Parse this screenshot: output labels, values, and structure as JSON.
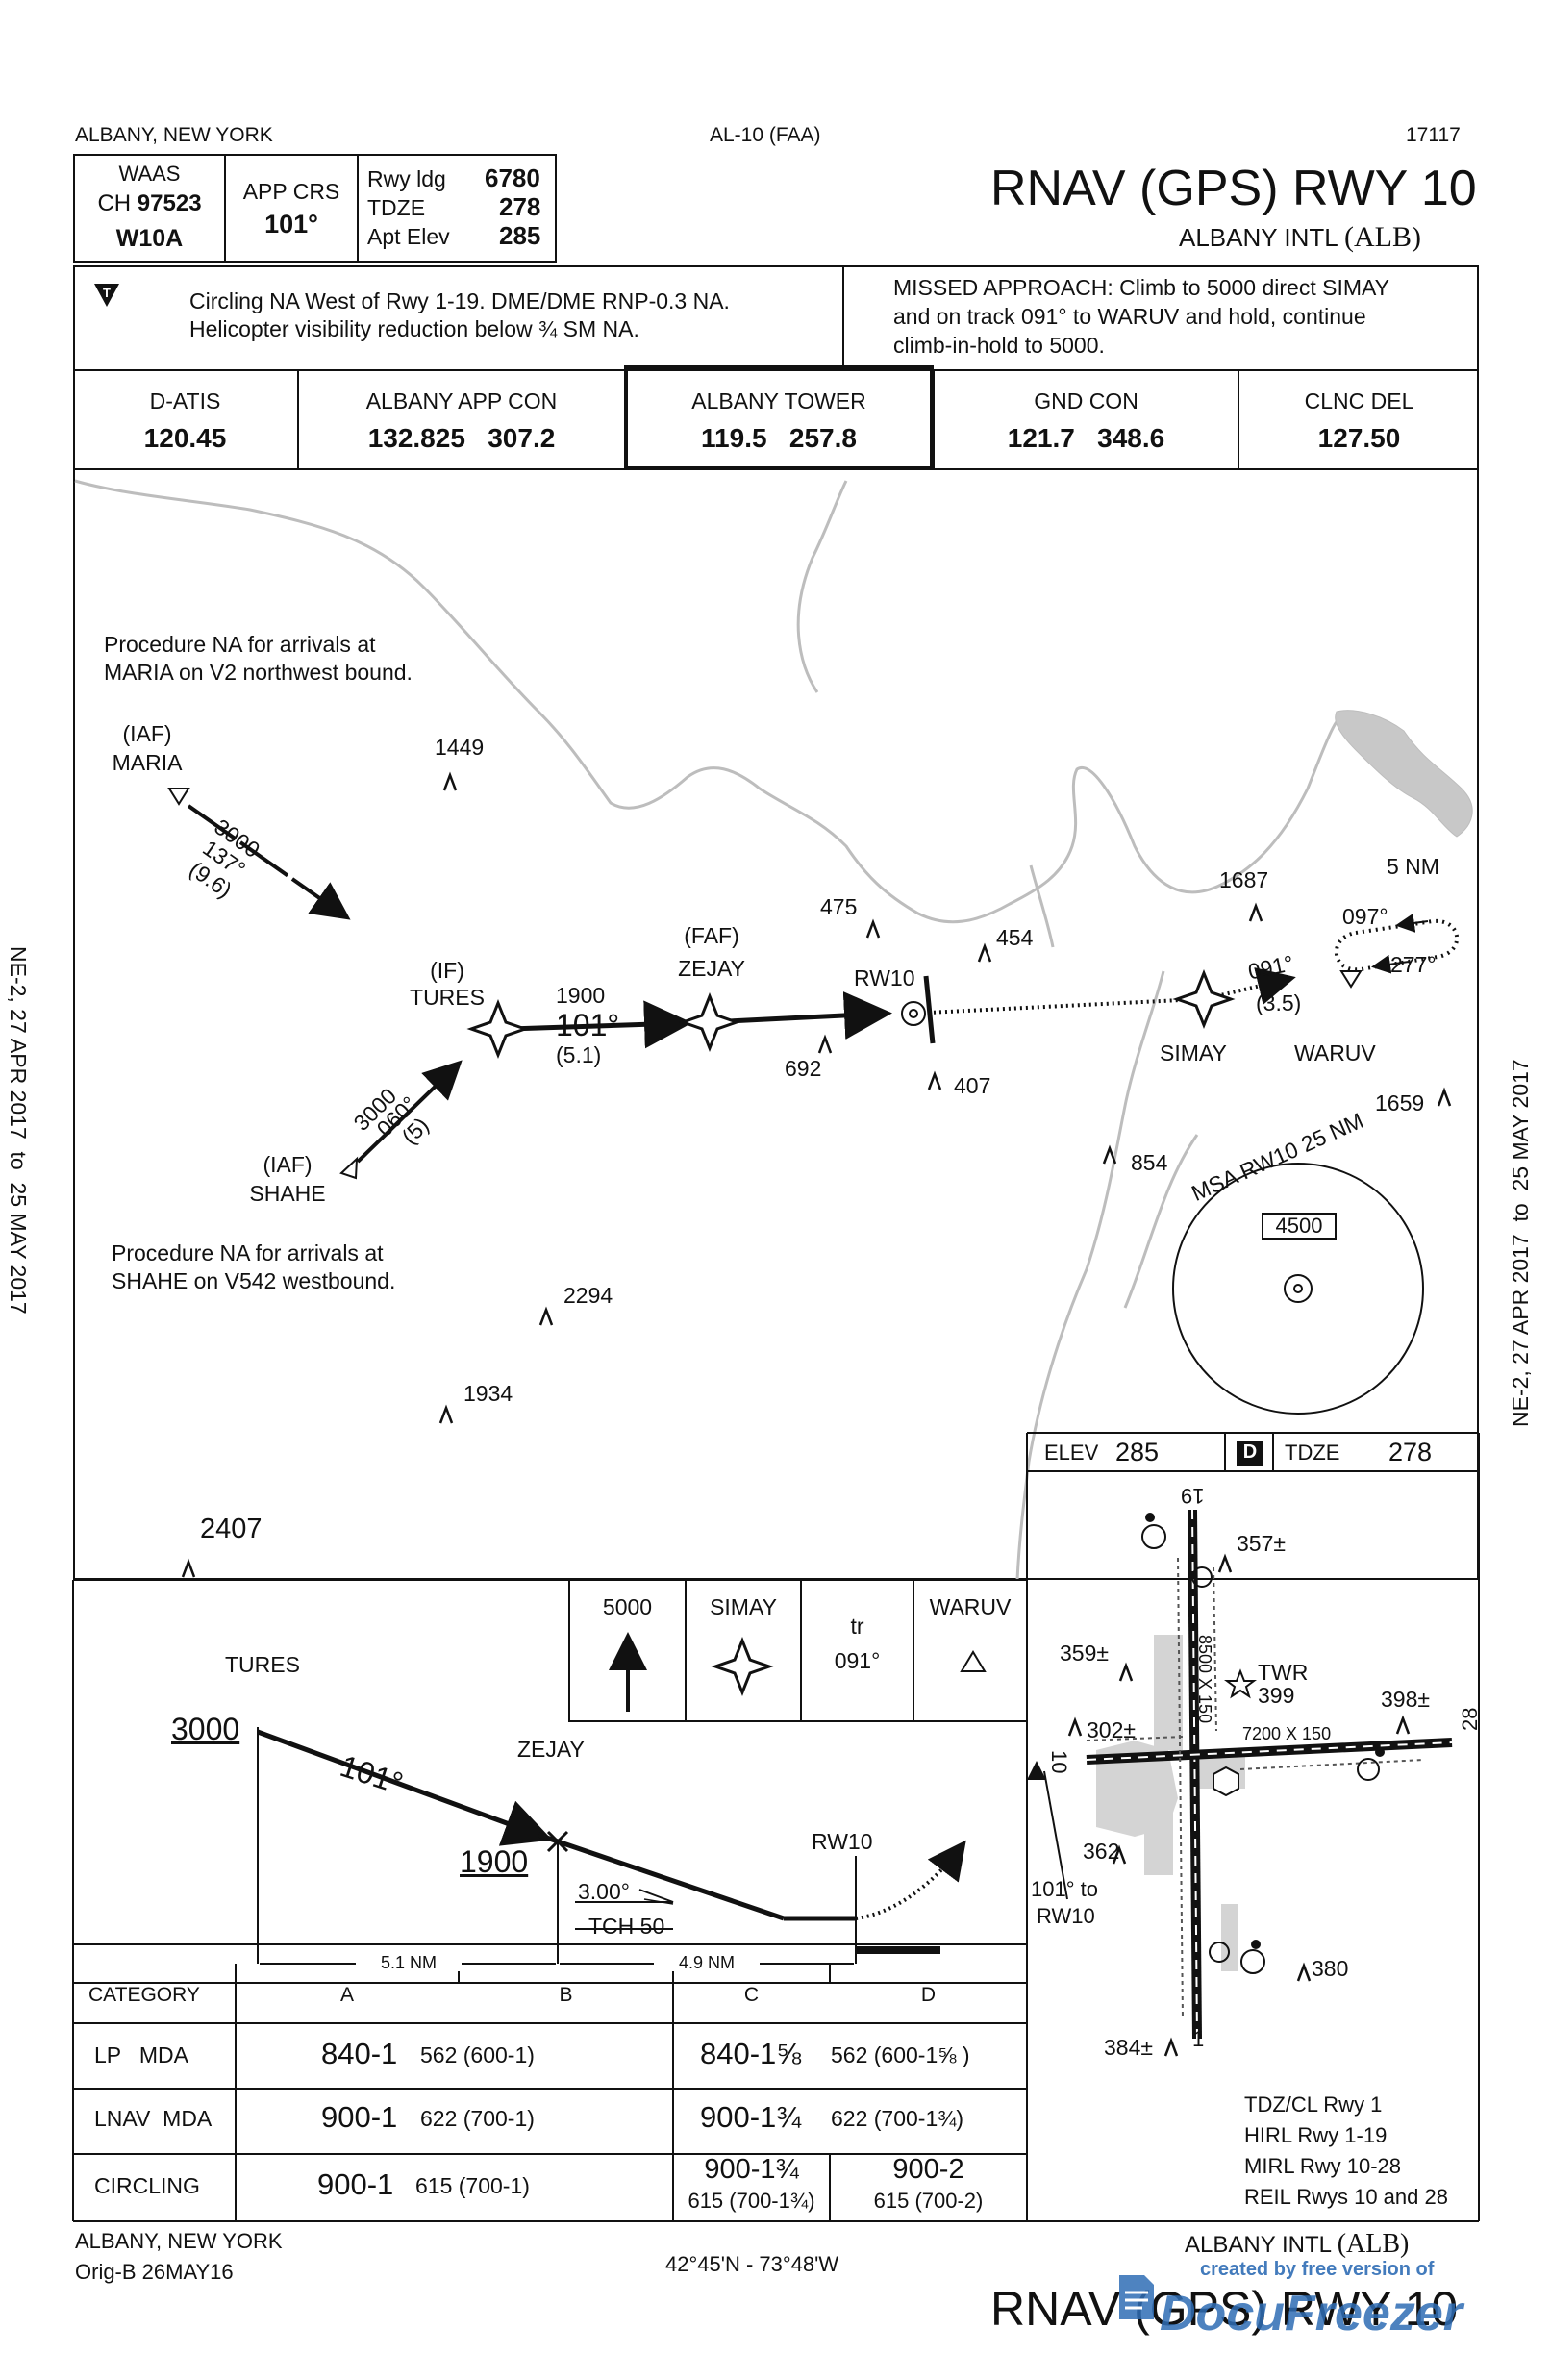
{
  "header": {
    "location": "ALBANY, NEW YORK",
    "chart_id": "AL-10 (FAA)",
    "cycle": "17117",
    "title": "RNAV (GPS) RWY 10",
    "airport": "ALBANY INTL",
    "airport_id": "(ALB)"
  },
  "briefing": {
    "waas_label": "WAAS",
    "ch_label": "CH",
    "channel": "97523",
    "waas_id": "W10A",
    "app_crs_label": "APP CRS",
    "app_crs": "101°",
    "rwy_ldg_label": "Rwy ldg",
    "rwy_ldg": "6780",
    "tdze_label": "TDZE",
    "tdze": "278",
    "apt_elev_label": "Apt Elev",
    "apt_elev": "285",
    "notes_line1": "Circling NA West of Rwy 1-19. DME/DME RNP-0.3 NA.",
    "notes_line2": "Helicopter visibility reduction below ¾ SM NA.",
    "missed_line1": "MISSED APPROACH: Climb to 5000 direct SIMAY",
    "missed_line2": "and on track 091° to WARUV and hold, continue",
    "missed_line3": "climb-in-hold to 5000."
  },
  "comms": [
    {
      "name": "D-ATIS",
      "freq": "120.45"
    },
    {
      "name": "ALBANY APP CON",
      "freq": "132.825   307.2"
    },
    {
      "name": "ALBANY TOWER",
      "freq": "119.5   257.8"
    },
    {
      "name": "GND CON",
      "freq": "121.7   348.6"
    },
    {
      "name": "CLNC DEL",
      "freq": "127.50"
    }
  ],
  "plan": {
    "note1_line1": "Procedure NA for arrivals at",
    "note1_line2": "MARIA on V2 northwest bound.",
    "note2_line1": "Procedure NA for arrivals at",
    "note2_line2": "SHAHE on V542 westbound.",
    "maria_iaf": "(IAF)",
    "maria": "MARIA",
    "maria_alt": "3000",
    "maria_crs": "137°",
    "maria_dist": "(9.6)",
    "shahe_iaf": "(IAF)",
    "shahe": "SHAHE",
    "shahe_alt": "3000",
    "shahe_crs": "060°",
    "shahe_dist": "(5)",
    "tures_if": "(IF)",
    "tures": "TURES",
    "tures_alt": "1900",
    "final_crs": "101°",
    "final_dist": "(5.1)",
    "zejay_faf": "(FAF)",
    "zejay": "ZEJAY",
    "rw10": "RW10",
    "simay": "SIMAY",
    "waruv": "WARUV",
    "hold_dist": "5 NM",
    "hold_out": "097°",
    "hold_in": "277°",
    "miss_crs": "091°",
    "miss_dist": "(3.5)",
    "obstacles": [
      "1449",
      "475",
      "454",
      "1687",
      "692",
      "407",
      "854",
      "1659",
      "2294",
      "1934",
      "2407"
    ],
    "msa_label": "MSA RW10 25 NM",
    "msa_alt": "4500"
  },
  "profile": {
    "tures": "TURES",
    "alt_3000": "3000",
    "crs": "101°",
    "zejay": "ZEJAY",
    "alt_1900": "1900",
    "rw10": "RW10",
    "gs": "3.00°",
    "tch": "TCH 50",
    "dist1": "5.1 NM",
    "dist2": "4.9 NM",
    "icon_alt": "5000",
    "icon_simay": "SIMAY",
    "icon_tr": "tr",
    "icon_crs": "091°",
    "icon_waruv": "WARUV"
  },
  "minimums": {
    "headers": [
      "CATEGORY",
      "A",
      "B",
      "C",
      "D"
    ],
    "lp_label": "LP   MDA",
    "lp_ab": "840-1",
    "lp_ab_h": "562 (600-1)",
    "lp_cd": "840-1⅝",
    "lp_cd_h": "562 (600-1⅝ )",
    "lnav_label": "LNAV  MDA",
    "lnav_ab": "900-1",
    "lnav_ab_h": "622 (700-1)",
    "lnav_cd": "900-1¾",
    "lnav_cd_h": "622 (700-1¾)",
    "circ_label": "CIRCLING",
    "circ_ab": "900-1",
    "circ_ab_h": "615 (700-1)",
    "circ_c": "900-1¾",
    "circ_c_h": "615 (700-1¾)",
    "circ_d": "900-2",
    "circ_d_h": "615 (700-2)"
  },
  "airport_diagram": {
    "elev_label": "ELEV",
    "elev": "285",
    "d_badge": "D",
    "tdze_label": "TDZE",
    "tdze": "278",
    "rwy1_len": "8500 X 150",
    "rwy10_len": "7200 X 150",
    "twr": "TWR",
    "twr_elev": "399",
    "obs": [
      "357±",
      "359±",
      "302±",
      "398±",
      "362",
      "380",
      "384±"
    ],
    "rwy_19": "19",
    "rwy_1": "1",
    "rwy_10": "10",
    "rwy_28": "28",
    "approach_note1": "101° to",
    "approach_note2": "RW10",
    "notes": [
      "TDZ/CL Rwy 1",
      "HIRL Rwy 1-19",
      "MIRL Rwy 10-28",
      "REIL Rwys 10 and 28"
    ]
  },
  "side": {
    "left": "NE-2, 27 APR 2017  to  25 MAY 2017",
    "right": "NE-2, 27 APR 2017  to  25 MAY 2017"
  },
  "footer": {
    "location": "ALBANY, NEW YORK",
    "amendment": "Orig-B  26MAY16",
    "coords": "42°45'N - 73°48'W",
    "airport": "ALBANY INTL",
    "airport_id": "(ALB)",
    "title": "RNAV (GPS) RWY 10",
    "watermark1": "created by free version of",
    "watermark2": "DocuFreezer"
  }
}
